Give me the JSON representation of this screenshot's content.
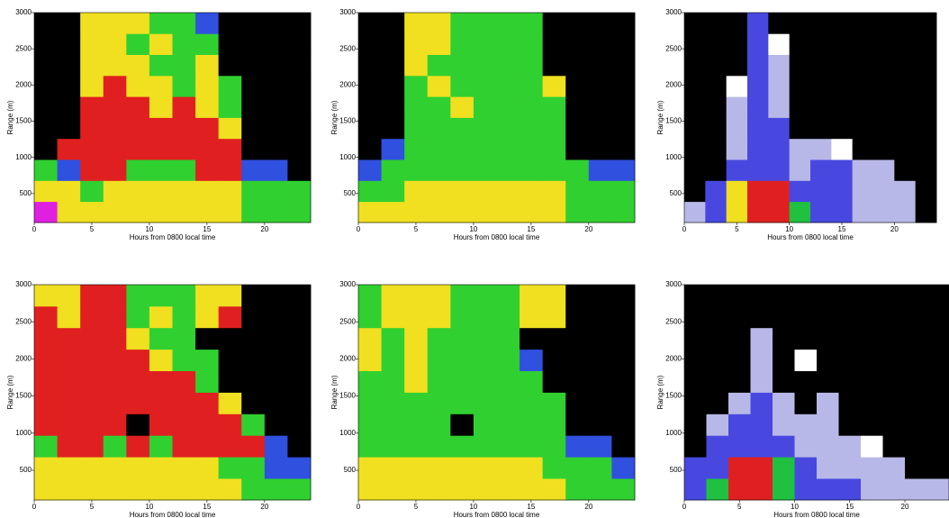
{
  "chart_data": [
    {
      "type": "heatmap",
      "xlabel": "Hours from 0800 local time",
      "ylabel": "Range (m)",
      "xlim": [
        0,
        24
      ],
      "ylim": [
        100,
        3000
      ],
      "xticks": [
        0,
        5,
        10,
        15,
        20
      ],
      "yticks": [
        500,
        1000,
        1500,
        2000,
        2500,
        3000
      ],
      "xbins": [
        0,
        2,
        4,
        6,
        8,
        10,
        12,
        14,
        16,
        18,
        20,
        22,
        24
      ],
      "ybins": [
        100,
        390,
        680,
        970,
        1260,
        1550,
        1840,
        2130,
        2420,
        2710,
        3000
      ],
      "colors": [
        "#000000",
        "#3050e0",
        "#30d030",
        "#f0e020",
        "#e02020",
        "#e020e0"
      ],
      "z": [
        [
          5,
          3,
          3,
          3,
          3,
          3,
          3,
          3,
          3,
          2,
          2,
          2
        ],
        [
          3,
          3,
          2,
          3,
          3,
          3,
          3,
          3,
          3,
          2,
          2,
          2
        ],
        [
          2,
          1,
          4,
          4,
          2,
          2,
          2,
          4,
          4,
          1,
          1,
          0
        ],
        [
          0,
          4,
          4,
          4,
          4,
          4,
          4,
          4,
          4,
          0,
          0,
          0
        ],
        [
          0,
          0,
          4,
          4,
          4,
          4,
          4,
          4,
          3,
          0,
          0,
          0
        ],
        [
          0,
          0,
          4,
          4,
          4,
          3,
          4,
          3,
          2,
          0,
          0,
          0
        ],
        [
          0,
          0,
          3,
          4,
          3,
          3,
          2,
          3,
          2,
          0,
          0,
          0
        ],
        [
          0,
          0,
          3,
          3,
          3,
          2,
          2,
          3,
          0,
          0,
          0,
          0
        ],
        [
          0,
          0,
          3,
          3,
          2,
          3,
          2,
          2,
          0,
          0,
          0,
          0
        ],
        [
          0,
          0,
          3,
          3,
          3,
          2,
          2,
          1,
          0,
          0,
          0,
          0
        ]
      ]
    },
    {
      "type": "heatmap",
      "xlabel": "Hours from 0800 local time",
      "ylabel": "Range (m)",
      "xlim": [
        0,
        24
      ],
      "ylim": [
        100,
        3000
      ],
      "xticks": [
        0,
        5,
        10,
        15,
        20
      ],
      "yticks": [
        500,
        1000,
        1500,
        2000,
        2500,
        3000
      ],
      "xbins": [
        0,
        2,
        4,
        6,
        8,
        10,
        12,
        14,
        16,
        18,
        20,
        22,
        24
      ],
      "ybins": [
        100,
        390,
        680,
        970,
        1260,
        1550,
        1840,
        2130,
        2420,
        2710,
        3000
      ],
      "colors": [
        "#000000",
        "#3050e0",
        "#30d030",
        "#f0e020",
        "#e02020",
        "#e020e0"
      ],
      "z": [
        [
          3,
          3,
          3,
          3,
          3,
          3,
          3,
          3,
          3,
          2,
          2,
          2
        ],
        [
          2,
          2,
          3,
          3,
          3,
          3,
          3,
          3,
          3,
          2,
          2,
          2
        ],
        [
          1,
          2,
          2,
          2,
          2,
          2,
          2,
          2,
          2,
          2,
          1,
          1
        ],
        [
          0,
          1,
          2,
          2,
          2,
          2,
          2,
          2,
          2,
          0,
          0,
          0
        ],
        [
          0,
          0,
          2,
          2,
          2,
          2,
          2,
          2,
          2,
          0,
          0,
          0
        ],
        [
          0,
          0,
          2,
          2,
          3,
          2,
          2,
          2,
          2,
          0,
          0,
          0
        ],
        [
          0,
          0,
          2,
          3,
          2,
          2,
          2,
          2,
          3,
          0,
          0,
          0
        ],
        [
          0,
          0,
          3,
          2,
          2,
          2,
          2,
          2,
          0,
          0,
          0,
          0
        ],
        [
          0,
          0,
          3,
          3,
          2,
          2,
          2,
          2,
          0,
          0,
          0,
          0
        ],
        [
          0,
          0,
          3,
          3,
          2,
          2,
          2,
          2,
          0,
          0,
          0,
          0
        ]
      ]
    },
    {
      "type": "heatmap",
      "xlabel": "Hours from 0800 local time",
      "ylabel": "Range (m)",
      "xlim": [
        0,
        24
      ],
      "ylim": [
        100,
        3000
      ],
      "xticks": [
        0,
        5,
        10,
        15,
        20
      ],
      "yticks": [
        500,
        1000,
        1500,
        2000,
        2500,
        3000
      ],
      "xbins": [
        0,
        2,
        4,
        6,
        8,
        10,
        12,
        14,
        16,
        18,
        20,
        22,
        24
      ],
      "ybins": [
        100,
        390,
        680,
        970,
        1260,
        1550,
        1840,
        2130,
        2420,
        2710,
        3000
      ],
      "colors": [
        "#000000",
        "#ffffff",
        "#b8b8e8",
        "#4848e0",
        "#20c040",
        "#f0e020",
        "#e02020"
      ],
      "z": [
        [
          2,
          3,
          5,
          6,
          6,
          4,
          3,
          3,
          2,
          2,
          2,
          0
        ],
        [
          0,
          3,
          5,
          6,
          6,
          3,
          3,
          3,
          2,
          2,
          2,
          0
        ],
        [
          0,
          0,
          3,
          3,
          3,
          2,
          3,
          3,
          2,
          2,
          0,
          0
        ],
        [
          0,
          0,
          2,
          3,
          3,
          2,
          2,
          1,
          0,
          0,
          0,
          0
        ],
        [
          0,
          0,
          2,
          3,
          3,
          0,
          0,
          0,
          0,
          0,
          0,
          0
        ],
        [
          0,
          0,
          2,
          3,
          2,
          0,
          0,
          0,
          0,
          0,
          0,
          0
        ],
        [
          0,
          0,
          1,
          3,
          2,
          0,
          0,
          0,
          0,
          0,
          0,
          0
        ],
        [
          0,
          0,
          0,
          3,
          2,
          0,
          0,
          0,
          0,
          0,
          0,
          0
        ],
        [
          0,
          0,
          0,
          3,
          1,
          0,
          0,
          0,
          0,
          0,
          0,
          0
        ],
        [
          0,
          0,
          0,
          3,
          0,
          0,
          0,
          0,
          0,
          0,
          0,
          0
        ]
      ]
    },
    {
      "type": "heatmap",
      "xlabel": "Hours from 0800 local time",
      "ylabel": "Range (m)",
      "xlim": [
        0,
        24
      ],
      "ylim": [
        100,
        3000
      ],
      "xticks": [
        0,
        5,
        10,
        15,
        20
      ],
      "yticks": [
        500,
        1000,
        1500,
        2000,
        2500,
        3000
      ],
      "xbins": [
        0,
        2,
        4,
        6,
        8,
        10,
        12,
        14,
        16,
        18,
        20,
        22,
        24
      ],
      "ybins": [
        100,
        390,
        680,
        970,
        1260,
        1550,
        1840,
        2130,
        2420,
        2710,
        3000
      ],
      "colors": [
        "#000000",
        "#3050e0",
        "#30d030",
        "#f0e020",
        "#e02020",
        "#e020e0"
      ],
      "z": [
        [
          3,
          3,
          3,
          3,
          3,
          3,
          3,
          3,
          3,
          2,
          2,
          2
        ],
        [
          3,
          3,
          3,
          3,
          3,
          3,
          3,
          3,
          2,
          2,
          1,
          1
        ],
        [
          2,
          4,
          4,
          2,
          4,
          2,
          4,
          4,
          4,
          4,
          1,
          0
        ],
        [
          4,
          4,
          4,
          4,
          0,
          4,
          4,
          4,
          4,
          2,
          0,
          0
        ],
        [
          4,
          4,
          4,
          4,
          4,
          4,
          4,
          4,
          3,
          0,
          0,
          0
        ],
        [
          4,
          4,
          4,
          4,
          4,
          4,
          4,
          2,
          0,
          0,
          0,
          0
        ],
        [
          4,
          4,
          4,
          4,
          4,
          3,
          2,
          2,
          0,
          0,
          0,
          0
        ],
        [
          4,
          4,
          4,
          4,
          3,
          2,
          2,
          0,
          0,
          0,
          0,
          0
        ],
        [
          4,
          3,
          4,
          4,
          2,
          3,
          2,
          3,
          4,
          0,
          0,
          0
        ],
        [
          3,
          3,
          4,
          4,
          2,
          2,
          2,
          3,
          3,
          0,
          0,
          0
        ]
      ]
    },
    {
      "type": "heatmap",
      "xlabel": "Hours from 0800 local time",
      "ylabel": "Range (m)",
      "xlim": [
        0,
        24
      ],
      "ylim": [
        100,
        3000
      ],
      "xticks": [
        0,
        5,
        10,
        15,
        20
      ],
      "yticks": [
        500,
        1000,
        1500,
        2000,
        2500,
        3000
      ],
      "xbins": [
        0,
        2,
        4,
        6,
        8,
        10,
        12,
        14,
        16,
        18,
        20,
        22,
        24
      ],
      "ybins": [
        100,
        390,
        680,
        970,
        1260,
        1550,
        1840,
        2130,
        2420,
        2710,
        3000
      ],
      "colors": [
        "#000000",
        "#3050e0",
        "#30d030",
        "#f0e020",
        "#e02020",
        "#e020e0"
      ],
      "z": [
        [
          3,
          3,
          3,
          3,
          3,
          3,
          3,
          3,
          3,
          2,
          2,
          2
        ],
        [
          3,
          3,
          3,
          3,
          3,
          3,
          3,
          3,
          2,
          2,
          2,
          1
        ],
        [
          2,
          2,
          2,
          2,
          2,
          2,
          2,
          2,
          2,
          1,
          1,
          0
        ],
        [
          2,
          2,
          2,
          2,
          0,
          2,
          2,
          2,
          2,
          0,
          0,
          0
        ],
        [
          2,
          2,
          2,
          2,
          2,
          2,
          2,
          2,
          2,
          0,
          0,
          0
        ],
        [
          2,
          2,
          3,
          2,
          2,
          2,
          2,
          2,
          0,
          0,
          0,
          0
        ],
        [
          3,
          2,
          3,
          2,
          2,
          2,
          2,
          1,
          0,
          0,
          0,
          0
        ],
        [
          3,
          2,
          3,
          2,
          2,
          2,
          2,
          0,
          0,
          0,
          0,
          0
        ],
        [
          2,
          3,
          3,
          3,
          2,
          2,
          2,
          3,
          3,
          0,
          0,
          0
        ],
        [
          2,
          3,
          3,
          3,
          2,
          2,
          2,
          3,
          3,
          0,
          0,
          0
        ]
      ]
    },
    {
      "type": "heatmap",
      "xlabel": "Hours from 0800 local time",
      "ylabel": "Range (m)",
      "xlim": [
        0,
        24
      ],
      "ylim": [
        100,
        3000
      ],
      "xticks": [
        0,
        5,
        10,
        15,
        20
      ],
      "yticks": [
        500,
        1000,
        1500,
        2000,
        2500,
        3000
      ],
      "xbins": [
        0,
        2,
        4,
        6,
        8,
        10,
        12,
        14,
        16,
        18,
        20,
        22,
        24
      ],
      "ybins": [
        100,
        390,
        680,
        970,
        1260,
        1550,
        1840,
        2130,
        2420,
        2710,
        3000
      ],
      "colors": [
        "#000000",
        "#ffffff",
        "#b8b8e8",
        "#4848e0",
        "#20c040",
        "#f0e020",
        "#e02020"
      ],
      "z": [
        [
          3,
          4,
          6,
          6,
          4,
          3,
          3,
          3,
          2,
          2,
          2,
          2
        ],
        [
          3,
          3,
          6,
          6,
          4,
          3,
          2,
          2,
          2,
          2,
          0,
          0
        ],
        [
          0,
          3,
          3,
          3,
          3,
          2,
          2,
          2,
          1,
          0,
          0,
          0
        ],
        [
          0,
          2,
          3,
          3,
          2,
          2,
          2,
          0,
          0,
          0,
          0,
          0
        ],
        [
          0,
          0,
          2,
          3,
          2,
          0,
          2,
          0,
          0,
          0,
          0,
          0
        ],
        [
          0,
          0,
          0,
          2,
          0,
          0,
          0,
          0,
          0,
          0,
          0,
          0
        ],
        [
          0,
          0,
          0,
          2,
          0,
          1,
          0,
          0,
          0,
          0,
          0,
          0
        ],
        [
          0,
          0,
          0,
          2,
          0,
          0,
          0,
          0,
          0,
          0,
          0,
          0
        ],
        [
          0,
          0,
          0,
          0,
          0,
          0,
          0,
          0,
          0,
          0,
          0,
          0
        ],
        [
          0,
          0,
          0,
          0,
          0,
          0,
          0,
          0,
          0,
          0,
          0,
          0
        ]
      ]
    }
  ]
}
